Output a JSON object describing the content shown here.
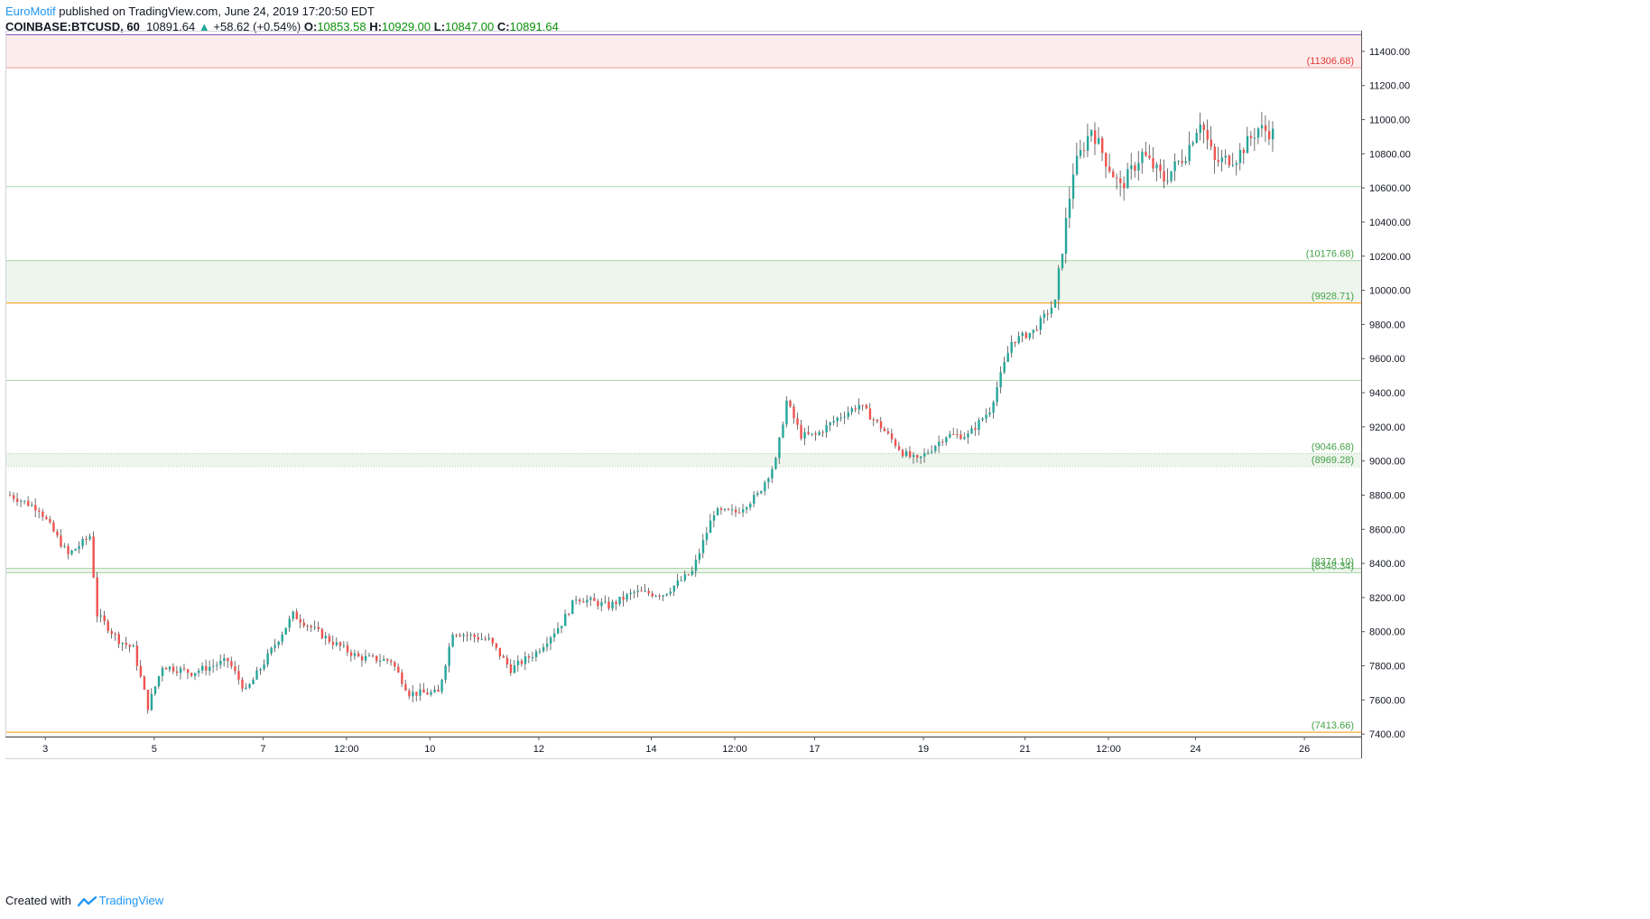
{
  "header": {
    "author": "EuroMotif",
    "published_text": "published on TradingView.com, June 24, 2019 17:20:50 EDT"
  },
  "symbol_line": {
    "symbol": "COINBASE:BTCUSD, 60",
    "last": "10891.64",
    "change": "+58.62 (+0.54%)",
    "open_label": "O:",
    "open": "10853.58",
    "high_label": "H:",
    "high": "10929.00",
    "low_label": "L:",
    "low": "10847.00",
    "close_label": "C:",
    "close": "10891.64"
  },
  "footer": {
    "created_with": "Created with",
    "brand": "TradingView"
  },
  "colors": {
    "up": "#26a69a",
    "down": "#ef5350",
    "level_green": "#a5d6a7",
    "level_orange": "#ff9800",
    "level_red_text": "#e53935",
    "level_green_text": "#43a047",
    "zone_red": "#fdecec",
    "zone_green": "#eef5ec"
  },
  "chart_data": {
    "type": "candlestick",
    "title": "",
    "ylim": [
      7385,
      11500
    ],
    "y_ticks": [
      "7400.00",
      "7600.00",
      "7800.00",
      "8000.00",
      "8200.00",
      "8400.00",
      "8600.00",
      "8800.00",
      "9000.00",
      "9200.00",
      "9400.00",
      "9600.00",
      "9800.00",
      "10000.00",
      "10200.00",
      "10400.00",
      "10600.00",
      "10800.00",
      "11000.00",
      "11200.00",
      "11400.00"
    ],
    "x_ticks": [
      "3",
      "5",
      "7",
      "12:00",
      "10",
      "12",
      "14",
      "12:00",
      "17",
      "19",
      "21",
      "12:00",
      "24",
      "26"
    ],
    "x_tick_index": [
      10,
      40,
      70,
      93,
      116,
      146,
      177,
      200,
      222,
      252,
      280,
      303,
      327,
      357
    ],
    "zones": [
      {
        "low": 11306.68,
        "high": 11500,
        "color": "red"
      },
      {
        "low": 9928.71,
        "high": 10176.68,
        "color": "green"
      },
      {
        "low": 8969.28,
        "high": 9046.68,
        "color": "green"
      },
      {
        "low": 8348.34,
        "high": 8374.1,
        "color": "green"
      }
    ],
    "levels": [
      {
        "value": 11306.68,
        "label": "(11306.68)",
        "style": "solid",
        "color": "red"
      },
      {
        "value": 10610,
        "label": "",
        "style": "solid",
        "color": "green"
      },
      {
        "value": 10176.68,
        "label": "(10176.68)",
        "style": "solid",
        "color": "green"
      },
      {
        "value": 9928.71,
        "label": "(9928.71)",
        "style": "solid",
        "color": "orange"
      },
      {
        "value": 9475,
        "label": "",
        "style": "solid",
        "color": "green"
      },
      {
        "value": 9046.68,
        "label": "(9046.68)",
        "style": "dotted",
        "color": "green"
      },
      {
        "value": 8969.28,
        "label": "(8969.28)",
        "style": "dotted",
        "color": "green"
      },
      {
        "value": 8374.1,
        "label": "(8374.10)",
        "style": "solid",
        "color": "green"
      },
      {
        "value": 8348.34,
        "label": "(8348.34)",
        "style": "solid",
        "color": "green"
      },
      {
        "value": 7413.66,
        "label": "(7413.66)",
        "style": "solid",
        "color": "orange"
      }
    ],
    "anchors": [
      [
        0,
        8800
      ],
      [
        8,
        8720
      ],
      [
        16,
        8450
      ],
      [
        22,
        8560
      ],
      [
        24,
        8100
      ],
      [
        30,
        7950
      ],
      [
        34,
        7900
      ],
      [
        38,
        7560
      ],
      [
        42,
        7800
      ],
      [
        50,
        7760
      ],
      [
        60,
        7830
      ],
      [
        65,
        7650
      ],
      [
        70,
        7820
      ],
      [
        78,
        8100
      ],
      [
        88,
        7950
      ],
      [
        96,
        7850
      ],
      [
        105,
        7830
      ],
      [
        110,
        7640
      ],
      [
        118,
        7640
      ],
      [
        122,
        8000
      ],
      [
        132,
        7950
      ],
      [
        138,
        7780
      ],
      [
        145,
        7880
      ],
      [
        152,
        8050
      ],
      [
        156,
        8200
      ],
      [
        165,
        8150
      ],
      [
        172,
        8230
      ],
      [
        180,
        8220
      ],
      [
        188,
        8350
      ],
      [
        194,
        8700
      ],
      [
        200,
        8700
      ],
      [
        206,
        8800
      ],
      [
        211,
        9000
      ],
      [
        214,
        9350
      ],
      [
        218,
        9150
      ],
      [
        222,
        9150
      ],
      [
        228,
        9250
      ],
      [
        234,
        9330
      ],
      [
        240,
        9200
      ],
      [
        246,
        9050
      ],
      [
        250,
        9000
      ],
      [
        258,
        9150
      ],
      [
        264,
        9150
      ],
      [
        270,
        9300
      ],
      [
        276,
        9700
      ],
      [
        282,
        9760
      ],
      [
        288,
        9930
      ],
      [
        290,
        10250
      ],
      [
        293,
        10700
      ],
      [
        298,
        10950
      ],
      [
        302,
        10760
      ],
      [
        306,
        10600
      ],
      [
        312,
        10800
      ],
      [
        318,
        10650
      ],
      [
        324,
        10800
      ],
      [
        328,
        11000
      ],
      [
        332,
        10750
      ],
      [
        338,
        10780
      ],
      [
        344,
        10950
      ],
      [
        348,
        10920
      ]
    ],
    "last_index": 348
  }
}
